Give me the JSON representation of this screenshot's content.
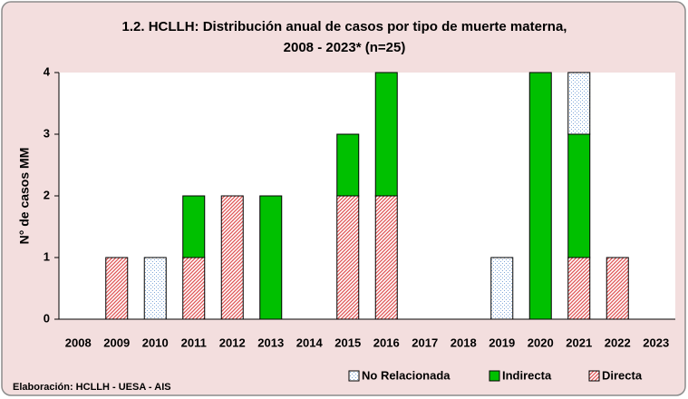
{
  "chart_data": {
    "type": "bar",
    "title": [
      "1.2. HCLLH: Distribución anual de casos por tipo de muerte materna,",
      "2008 - 2023* (n=25)"
    ],
    "y_label": "N° de casos MM",
    "footer": "Elaboración: HCLLH - UESA - AIS",
    "categories": [
      "2008",
      "2009",
      "2010",
      "2011",
      "2012",
      "2013",
      "2014",
      "2015",
      "2016",
      "2017",
      "2018",
      "2019",
      "2020",
      "2021",
      "2022",
      "2023"
    ],
    "stacked": true,
    "series": [
      {
        "name": "Directa",
        "color": "#e05555",
        "pattern": "hatch",
        "values": [
          0,
          1,
          0,
          1,
          2,
          0,
          0,
          2,
          2,
          0,
          0,
          0,
          0,
          1,
          1,
          0
        ]
      },
      {
        "name": "Indirecta",
        "color": "#00c000",
        "pattern": "solid",
        "values": [
          0,
          0,
          0,
          1,
          0,
          2,
          0,
          1,
          2,
          0,
          0,
          0,
          4,
          2,
          0,
          0
        ]
      },
      {
        "name": "No Relacionada",
        "color": "#7fa7d9",
        "pattern": "dots",
        "values": [
          0,
          0,
          1,
          0,
          0,
          0,
          0,
          0,
          0,
          0,
          0,
          1,
          0,
          1,
          0,
          0
        ]
      }
    ],
    "ylim": [
      0,
      4
    ],
    "yticks": [
      0,
      1,
      2,
      3,
      4
    ]
  }
}
